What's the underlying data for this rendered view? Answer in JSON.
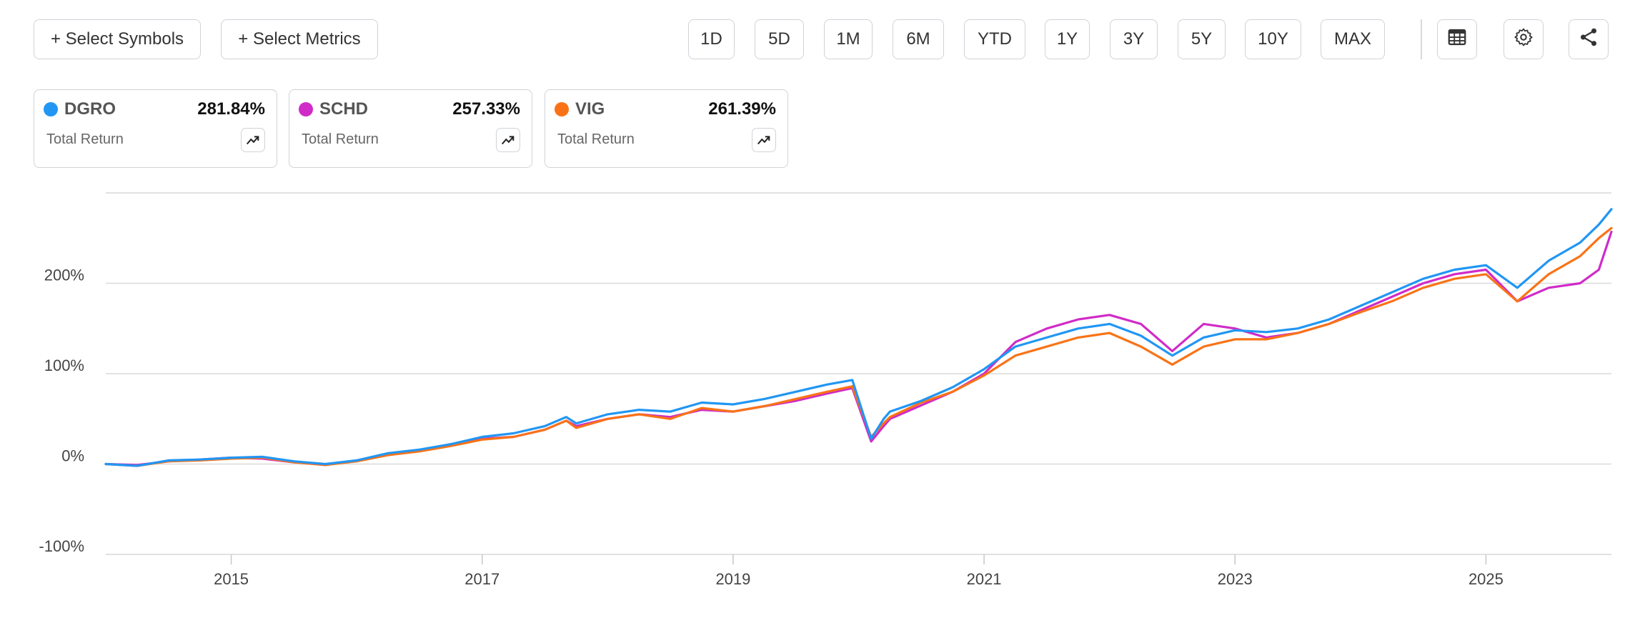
{
  "toolbar": {
    "select_symbols": "+ Select Symbols",
    "select_metrics": "+ Select Metrics",
    "ranges": [
      "1D",
      "5D",
      "1M",
      "6M",
      "YTD",
      "1Y",
      "3Y",
      "5Y",
      "10Y",
      "MAX"
    ],
    "icons": [
      "table-icon",
      "settings-gear-icon",
      "share-icon"
    ]
  },
  "cards": [
    {
      "symbol": "DGRO",
      "value": "281.84%",
      "metric": "Total Return",
      "color": "#2196F3"
    },
    {
      "symbol": "SCHD",
      "value": "257.33%",
      "metric": "Total Return",
      "color": "#D02BC8"
    },
    {
      "symbol": "VIG",
      "value": "261.39%",
      "metric": "Total Return",
      "color": "#F97316"
    }
  ],
  "chart_data": {
    "type": "line",
    "title": "",
    "xlabel": "",
    "ylabel": "",
    "ylim": [
      -100,
      300
    ],
    "xlim": [
      2014.0,
      2026.0
    ],
    "y_ticks": [
      "200%",
      "100%",
      "0%",
      "-100%"
    ],
    "y_tick_values": [
      200,
      100,
      0,
      -100
    ],
    "x_ticks": [
      "2015",
      "2017",
      "2019",
      "2021",
      "2023",
      "2025"
    ],
    "x_tick_values": [
      2015,
      2017,
      2019,
      2021,
      2023,
      2025
    ],
    "grid": true,
    "x": [
      2014.0,
      2014.25,
      2014.5,
      2014.75,
      2015.0,
      2015.25,
      2015.5,
      2015.75,
      2016.0,
      2016.25,
      2016.5,
      2016.75,
      2017.0,
      2017.25,
      2017.5,
      2017.67,
      2017.75,
      2018.0,
      2018.25,
      2018.5,
      2018.75,
      2019.0,
      2019.25,
      2019.5,
      2019.75,
      2019.95,
      2020.1,
      2020.2,
      2020.25,
      2020.5,
      2020.75,
      2021.0,
      2021.25,
      2021.5,
      2021.75,
      2022.0,
      2022.25,
      2022.5,
      2022.75,
      2023.0,
      2023.25,
      2023.5,
      2023.75,
      2024.0,
      2024.25,
      2024.5,
      2024.75,
      2025.0,
      2025.25,
      2025.5,
      2025.75,
      2025.9,
      2026.0
    ],
    "series": [
      {
        "name": "DGRO",
        "color": "#2196F3",
        "values": [
          0,
          -2,
          4,
          5,
          7,
          8,
          3,
          0,
          4,
          12,
          16,
          22,
          30,
          34,
          42,
          52,
          45,
          55,
          60,
          58,
          68,
          66,
          72,
          80,
          88,
          93,
          28,
          50,
          58,
          70,
          85,
          105,
          130,
          140,
          150,
          155,
          142,
          120,
          140,
          148,
          146,
          150,
          160,
          175,
          190,
          205,
          215,
          220,
          195,
          225,
          245,
          265,
          282
        ]
      },
      {
        "name": "SCHD",
        "color": "#D02BC8",
        "values": [
          0,
          -1,
          3,
          5,
          7,
          6,
          2,
          -1,
          4,
          10,
          15,
          22,
          28,
          30,
          38,
          48,
          42,
          50,
          55,
          52,
          60,
          58,
          64,
          70,
          78,
          84,
          25,
          42,
          50,
          65,
          80,
          100,
          135,
          150,
          160,
          165,
          155,
          125,
          155,
          150,
          140,
          145,
          155,
          170,
          185,
          200,
          210,
          215,
          180,
          195,
          200,
          215,
          257
        ]
      },
      {
        "name": "VIG",
        "color": "#F97316",
        "values": [
          0,
          -2,
          3,
          4,
          6,
          7,
          2,
          -1,
          3,
          10,
          14,
          20,
          27,
          30,
          38,
          48,
          40,
          50,
          55,
          50,
          62,
          58,
          64,
          72,
          80,
          86,
          30,
          45,
          52,
          68,
          80,
          98,
          120,
          130,
          140,
          145,
          130,
          110,
          130,
          138,
          138,
          145,
          155,
          168,
          180,
          195,
          205,
          210,
          180,
          210,
          230,
          250,
          261
        ]
      }
    ]
  }
}
